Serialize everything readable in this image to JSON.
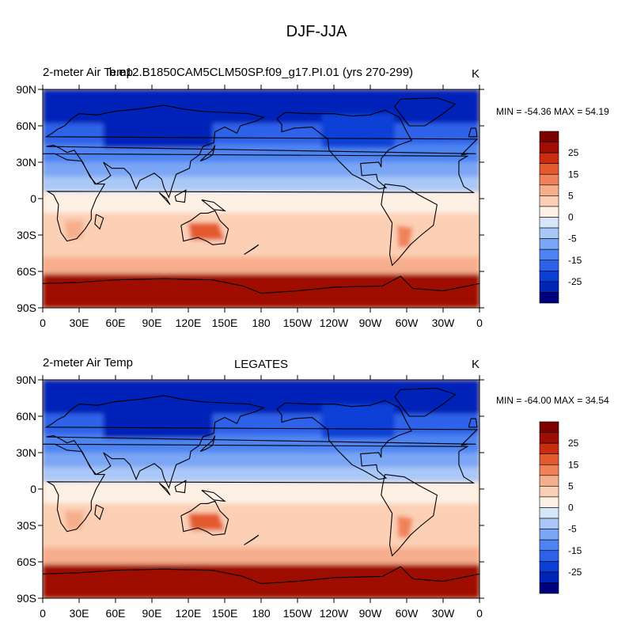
{
  "figure": {
    "title": "DJF-JJA"
  },
  "colorbar": {
    "levels": [
      -30,
      -25,
      -20,
      -15,
      -10,
      -5,
      -2,
      0,
      2,
      5,
      10,
      15,
      20,
      25,
      30
    ],
    "colors": [
      "#00007f",
      "#0024b8",
      "#0a3fd6",
      "#2d62e8",
      "#4d84f2",
      "#7aa6f5",
      "#a9c8f8",
      "#d7e7fb",
      "#fdf0e4",
      "#fbd0b5",
      "#f7ae8c",
      "#f0825a",
      "#e35a2e",
      "#c92c10",
      "#9e0e04",
      "#7c0000"
    ],
    "label_values": [
      "25",
      "15",
      "5",
      "0",
      "-5",
      "-15",
      "-25"
    ],
    "label_levels": [
      25,
      15,
      5,
      0,
      -5,
      -15,
      -25
    ]
  },
  "panels": [
    {
      "left_title": "2-meter Air Temp",
      "center_title": "b.e12.B1850CAM5CLM50SP.f09_g17.PI.01 (yrs 270-299)",
      "units": "K",
      "stats": "MIN = -54.36 MAX =  54.19"
    },
    {
      "left_title": "2-meter Air Temp",
      "center_title": "LEGATES",
      "units": "K",
      "stats": "MIN = -64.00 MAX =  34.54"
    }
  ],
  "axes": {
    "lat_labels": [
      "90N",
      "60N",
      "30N",
      "0",
      "30S",
      "60S",
      "90S"
    ],
    "lon_labels": [
      "0",
      "30E",
      "60E",
      "90E",
      "120E",
      "150E",
      "180",
      "150W",
      "120W",
      "90W",
      "60W",
      "30W",
      "0"
    ]
  }
}
